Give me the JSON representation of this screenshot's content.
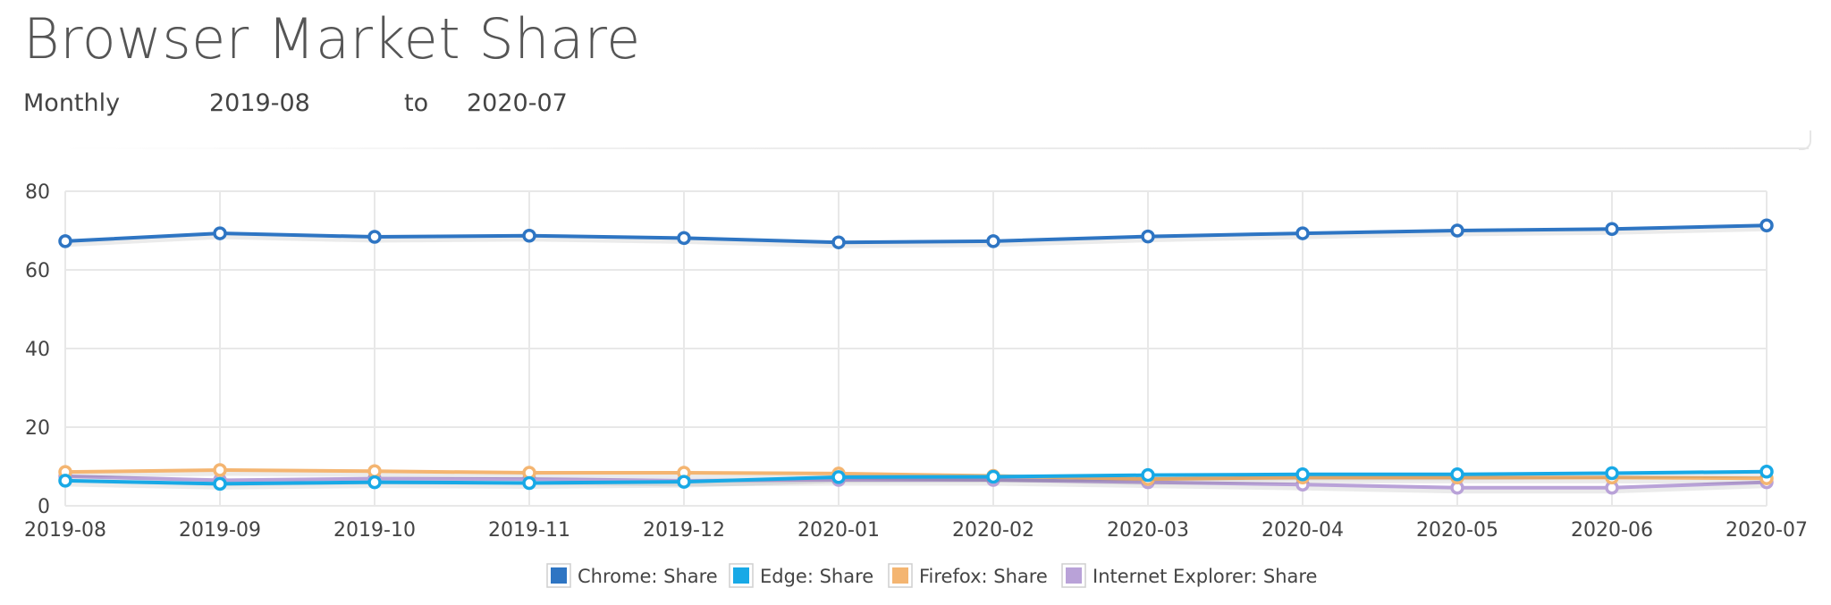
{
  "header": {
    "title": "Browser Market Share",
    "frequency": "Monthly",
    "start": "2019-08",
    "to_label": "to",
    "end": "2020-07"
  },
  "chart_data": {
    "type": "line",
    "x": [
      "2019-08",
      "2019-09",
      "2019-10",
      "2019-11",
      "2019-12",
      "2020-01",
      "2020-02",
      "2020-03",
      "2020-04",
      "2020-05",
      "2020-06",
      "2020-07"
    ],
    "ylim": [
      0,
      80
    ],
    "yticks": [
      0,
      20,
      40,
      60,
      80
    ],
    "grid": true,
    "legend_position": "bottom",
    "series": [
      {
        "name": "Chrome: Share",
        "color": "#2e75c3",
        "values": [
          67.3,
          69.3,
          68.4,
          68.7,
          68.1,
          67.0,
          67.3,
          68.5,
          69.3,
          70.0,
          70.4,
          71.3
        ]
      },
      {
        "name": "Edge: Share",
        "color": "#18a9e6",
        "values": [
          6.4,
          5.6,
          6.0,
          5.8,
          6.1,
          7.3,
          7.4,
          7.8,
          8.0,
          8.0,
          8.3,
          8.7
        ]
      },
      {
        "name": "Firefox: Share",
        "color": "#f4b571",
        "values": [
          8.6,
          9.1,
          8.8,
          8.4,
          8.4,
          8.2,
          7.6,
          6.8,
          7.2,
          7.2,
          7.2,
          7.0
        ]
      },
      {
        "name": "Internet Explorer: Share",
        "color": "#b9a2d8",
        "values": [
          7.5,
          6.5,
          6.9,
          6.8,
          6.4,
          6.6,
          6.6,
          6.0,
          5.4,
          4.6,
          4.6,
          6.0
        ]
      }
    ]
  }
}
